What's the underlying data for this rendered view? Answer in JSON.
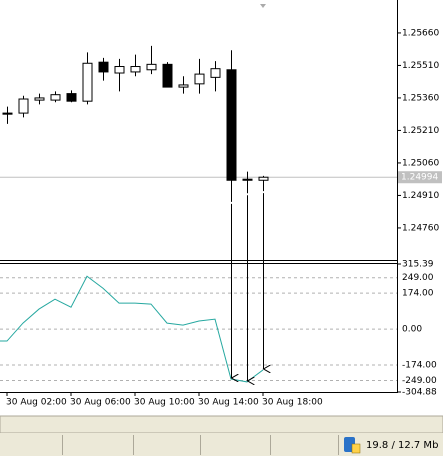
{
  "chart_data": [
    {
      "type": "candlestick",
      "open": [
        1.2529,
        1.2529,
        1.2535,
        1.2535,
        1.2538,
        1.25345,
        1.25525,
        1.25475,
        1.2548,
        1.2549,
        1.25515,
        1.2541,
        1.25425,
        1.25455,
        1.2549,
        1.24985,
        1.2498
      ],
      "high": [
        1.2532,
        1.2537,
        1.2538,
        1.2539,
        1.25395,
        1.2557,
        1.25545,
        1.2554,
        1.2556,
        1.256,
        1.25525,
        1.2546,
        1.2554,
        1.2553,
        1.2558,
        1.2502,
        1.25
      ],
      "low": [
        1.2524,
        1.2527,
        1.2533,
        1.2534,
        1.2534,
        1.2533,
        1.2544,
        1.2539,
        1.2546,
        1.2547,
        1.2541,
        1.2538,
        1.2538,
        1.2539,
        1.2488,
        1.2492,
        1.2493
      ],
      "close": [
        1.25285,
        1.25355,
        1.2536,
        1.25375,
        1.25345,
        1.2552,
        1.2548,
        1.25505,
        1.25505,
        1.25515,
        1.2541,
        1.2542,
        1.2547,
        1.25495,
        1.2498,
        1.2498,
        1.24994
      ],
      "current_price": 1.24994,
      "ylim": [
        1.24612,
        1.25812
      ],
      "yticks": [
        {
          "value": 1.2566,
          "label": "1.25660"
        },
        {
          "value": 1.2551,
          "label": "1.25510"
        },
        {
          "value": 1.2536,
          "label": "1.25360"
        },
        {
          "value": 1.2521,
          "label": "1.25210"
        },
        {
          "value": 1.2506,
          "label": "1.25060"
        },
        {
          "value": 1.2491,
          "label": "1.24910"
        },
        {
          "value": 1.2476,
          "label": "1.24760"
        }
      ]
    },
    {
      "type": "line",
      "color": "#26a8a0",
      "categories": [
        "30 Aug 02:00",
        null,
        null,
        null,
        "30 Aug 06:00",
        null,
        null,
        null,
        "30 Aug 10:00",
        null,
        null,
        null,
        "30 Aug 14:00",
        null,
        null,
        null,
        "30 Aug 18:00"
      ],
      "values": [
        -58,
        29,
        97,
        145,
        106,
        256,
        198,
        126,
        126,
        121,
        29,
        19,
        39,
        48,
        -242,
        -256,
        -198
      ],
      "ylim": [
        -304.88,
        315.39
      ],
      "yticks": [
        315.39,
        {
          "value": 249,
          "label": "249.00"
        },
        {
          "value": 174,
          "label": "174.00"
        },
        {
          "value": 0,
          "label": "0.00"
        },
        {
          "value": -174,
          "label": "-174.00"
        },
        {
          "value": -249,
          "label": "-249.00"
        },
        -304.88
      ]
    }
  ],
  "status_bar": {
    "memory": "19.8 / 12.7 Mb"
  }
}
